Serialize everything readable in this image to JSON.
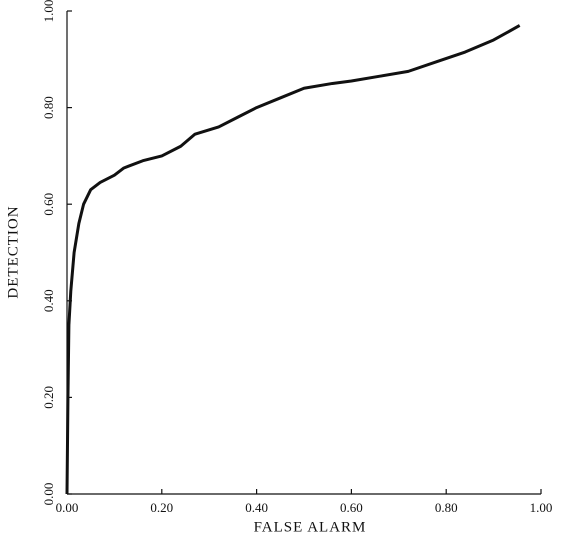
{
  "chart_data": {
    "type": "line",
    "xlabel": "FALSE ALARM",
    "ylabel": "DETECTION",
    "xlim": [
      0,
      1
    ],
    "ylim": [
      0,
      1
    ],
    "xticks": [
      {
        "value": 0,
        "label": "0.00"
      },
      {
        "value": 0.2,
        "label": "0.20"
      },
      {
        "value": 0.4,
        "label": "0.40"
      },
      {
        "value": 0.6,
        "label": "0.60"
      },
      {
        "value": 0.8,
        "label": "0.80"
      },
      {
        "value": 1,
        "label": "1.00"
      }
    ],
    "yticks": [
      {
        "value": 0,
        "label": "0.00"
      },
      {
        "value": 0.2,
        "label": "0.20"
      },
      {
        "value": 0.4,
        "label": "0.40"
      },
      {
        "value": 0.6,
        "label": "0.60"
      },
      {
        "value": 0.8,
        "label": "0.80"
      },
      {
        "value": 1,
        "label": "1.00"
      }
    ],
    "x": [
      0,
      0.002,
      0.004,
      0.008,
      0.015,
      0.025,
      0.035,
      0.05,
      0.07,
      0.1,
      0.12,
      0.16,
      0.2,
      0.24,
      0.27,
      0.32,
      0.36,
      0.4,
      0.45,
      0.5,
      0.56,
      0.6,
      0.66,
      0.72,
      0.78,
      0.84,
      0.9,
      0.955
    ],
    "series": [
      {
        "color": "#111111",
        "values": [
          0,
          0.2,
          0.35,
          0.42,
          0.5,
          0.56,
          0.6,
          0.63,
          0.645,
          0.66,
          0.675,
          0.69,
          0.7,
          0.72,
          0.745,
          0.76,
          0.78,
          0.8,
          0.82,
          0.84,
          0.85,
          0.855,
          0.865,
          0.875,
          0.895,
          0.915,
          0.94,
          0.97
        ]
      }
    ]
  }
}
